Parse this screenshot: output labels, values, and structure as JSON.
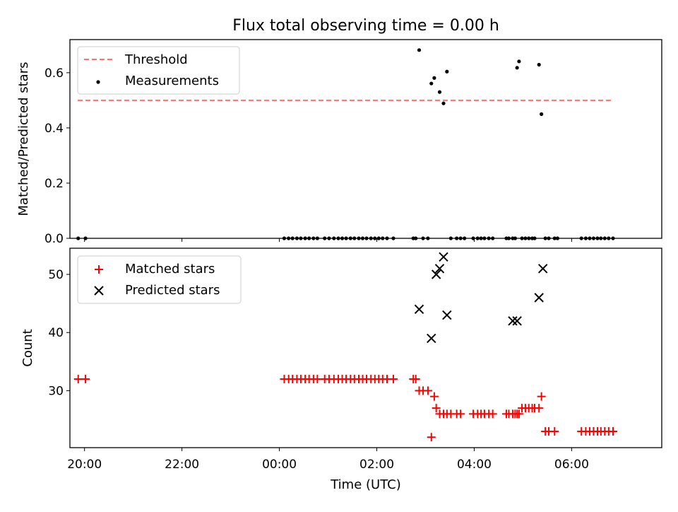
{
  "chart_data": [
    {
      "type": "scatter",
      "title": "Flux total observing time = 0.00 h",
      "xlabel": "",
      "ylabel": "Matched/Predicted stars",
      "xlim": [
        -0.3,
        11.85
      ],
      "ylim": [
        0.0,
        0.72
      ],
      "yticks": [
        0.0,
        0.2,
        0.4,
        0.6
      ],
      "ytick_labels": [
        "0.0",
        "0.2",
        "0.4",
        "0.6"
      ],
      "legend_position": "upper-left",
      "threshold": {
        "name": "Threshold",
        "value": 0.5,
        "x_range": [
          -0.14,
          10.82
        ],
        "color": "#ff7070",
        "style": "dashed"
      },
      "series": [
        {
          "name": "Measurements",
          "marker": "dot",
          "color": "#000000",
          "x": [
            -0.13,
            0.02,
            4.1,
            4.19,
            4.27,
            4.36,
            4.44,
            4.53,
            4.61,
            4.7,
            4.78,
            4.93,
            5.02,
            5.12,
            5.21,
            5.29,
            5.37,
            5.46,
            5.54,
            5.63,
            5.71,
            5.79,
            5.88,
            5.96,
            6.04,
            6.12,
            6.21,
            6.34,
            6.75,
            6.8,
            6.87,
            6.95,
            7.05,
            7.12,
            7.18,
            7.29,
            7.37,
            7.44,
            7.52,
            7.64,
            7.72,
            7.8,
            7.98,
            8.07,
            8.14,
            8.21,
            8.3,
            8.38,
            8.66,
            8.71,
            8.79,
            8.84,
            8.88,
            8.92,
            8.98,
            9.05,
            9.12,
            9.19,
            9.24,
            9.33,
            9.38,
            9.46,
            9.53,
            9.65,
            9.71,
            10.2,
            10.29,
            10.37,
            10.45,
            10.53,
            10.6,
            10.68,
            10.76,
            10.85
          ],
          "y": [
            0,
            0,
            0,
            0,
            0,
            0,
            0,
            0,
            0,
            0,
            0,
            0,
            0,
            0,
            0,
            0,
            0,
            0,
            0,
            0,
            0,
            0,
            0,
            0,
            0,
            0,
            0,
            0,
            0,
            0,
            0.682,
            0,
            0,
            0.561,
            0.581,
            0.53,
            0.489,
            0.604,
            0,
            0,
            0,
            0,
            0,
            0,
            0,
            0,
            0,
            0,
            0,
            0,
            0,
            0,
            0.618,
            0.641,
            0,
            0,
            0,
            0,
            0,
            0.629,
            0.45,
            0,
            0,
            0,
            0,
            0,
            0,
            0,
            0,
            0,
            0,
            0,
            0,
            0
          ]
        }
      ]
    },
    {
      "type": "scatter",
      "title": "",
      "xlabel": "Time (UTC)",
      "ylabel": "Count",
      "xlim": [
        -0.3,
        11.85
      ],
      "ylim": [
        20.2,
        54.5
      ],
      "yticks": [
        30,
        40,
        50
      ],
      "ytick_labels": [
        "30",
        "40",
        "50"
      ],
      "xticks": [
        0,
        2,
        4,
        6,
        8,
        10
      ],
      "xtick_labels": [
        "20:00",
        "22:00",
        "00:00",
        "02:00",
        "04:00",
        "06:00"
      ],
      "legend_position": "upper-left",
      "series": [
        {
          "name": "Matched stars",
          "marker": "plus",
          "color": "#ff0000",
          "x": [
            -0.13,
            0.02,
            4.1,
            4.19,
            4.27,
            4.36,
            4.44,
            4.53,
            4.61,
            4.7,
            4.78,
            4.93,
            5.02,
            5.12,
            5.21,
            5.29,
            5.37,
            5.46,
            5.54,
            5.63,
            5.71,
            5.79,
            5.88,
            5.96,
            6.04,
            6.12,
            6.21,
            6.34,
            6.75,
            6.8,
            6.87,
            6.95,
            7.05,
            7.12,
            7.18,
            7.22,
            7.29,
            7.37,
            7.44,
            7.52,
            7.64,
            7.72,
            7.98,
            8.07,
            8.14,
            8.21,
            8.3,
            8.38,
            8.66,
            8.71,
            8.79,
            8.84,
            8.88,
            8.92,
            8.98,
            9.05,
            9.12,
            9.19,
            9.24,
            9.33,
            9.38,
            9.46,
            9.53,
            9.65,
            10.2,
            10.29,
            10.37,
            10.45,
            10.53,
            10.6,
            10.68,
            10.76,
            10.85
          ],
          "y": [
            32,
            32,
            32,
            32,
            32,
            32,
            32,
            32,
            32,
            32,
            32,
            32,
            32,
            32,
            32,
            32,
            32,
            32,
            32,
            32,
            32,
            32,
            32,
            32,
            32,
            32,
            32,
            32,
            32,
            32,
            30,
            30,
            30,
            22,
            29,
            27,
            26,
            26,
            26,
            26,
            26,
            26,
            26,
            26,
            26,
            26,
            26,
            26,
            26,
            26,
            26,
            26,
            26,
            26,
            27,
            27,
            27,
            27,
            27,
            27,
            29,
            23,
            23,
            23,
            23,
            23,
            23,
            23,
            23,
            23,
            23,
            23,
            23
          ]
        },
        {
          "name": "Predicted stars",
          "marker": "x",
          "color": "#000000",
          "x": [
            6.87,
            7.12,
            7.22,
            7.29,
            7.37,
            7.44,
            8.79,
            8.88,
            9.33,
            9.41
          ],
          "y": [
            44,
            39,
            50,
            51,
            53,
            43,
            42,
            42,
            46,
            51
          ]
        }
      ]
    }
  ]
}
